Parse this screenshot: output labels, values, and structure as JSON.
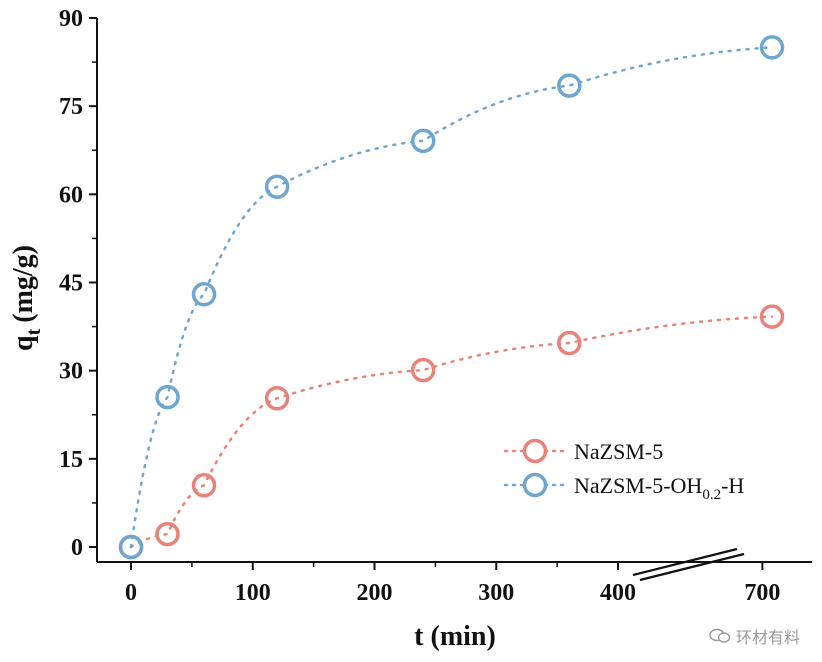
{
  "chart_data": {
    "type": "scatter",
    "title": "",
    "xlabel": "t (min)",
    "ylabel_main": "q",
    "ylabel_sub": "t",
    "ylabel_unit": "(mg/g)",
    "ylim": [
      0,
      90
    ],
    "yticks": [
      "0",
      "15",
      "30",
      "45",
      "60",
      "75",
      "90"
    ],
    "xticks": [
      "0",
      "100",
      "200",
      "300",
      "400",
      "700"
    ],
    "x_axis_break": "between 400 and 700",
    "legend_position": "lower-right",
    "series": [
      {
        "name": "NaZSM-5",
        "color": "#e8837a",
        "x": [
          0,
          30,
          60,
          120,
          240,
          360,
          720
        ],
        "y": [
          0,
          2.2,
          10.5,
          25.3,
          30.1,
          34.7,
          39.2
        ]
      },
      {
        "name": "NaZSM-5-OH0.2-H",
        "name_parts": [
          "NaZSM-5-OH",
          "0.2",
          "-H"
        ],
        "color": "#6ea6d0",
        "x": [
          0,
          30,
          60,
          120,
          240,
          360,
          720
        ],
        "y": [
          0,
          25.5,
          43.0,
          61.3,
          69.1,
          78.5,
          85.0
        ]
      }
    ]
  },
  "watermark": {
    "text": "环材有料",
    "icon": "wechat-icon"
  }
}
